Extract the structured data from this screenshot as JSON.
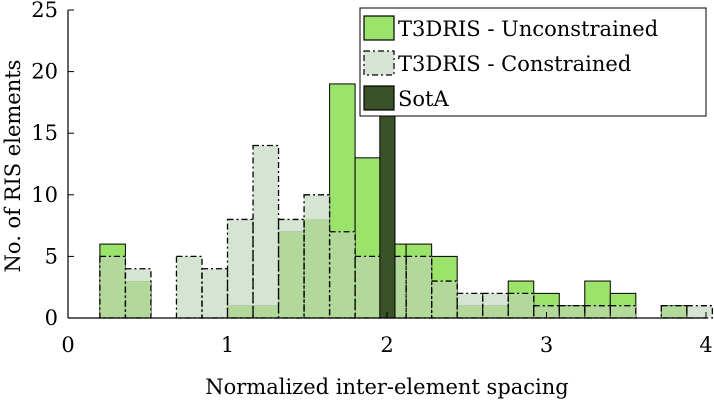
{
  "chart_data": {
    "type": "bar",
    "subtype": "histogram",
    "title": "",
    "xlabel": "Normalized inter-element spacing",
    "ylabel": "No. of RIS elements",
    "xlim": [
      0,
      4
    ],
    "ylim": [
      0,
      25
    ],
    "xticks": [
      0,
      1,
      2,
      3,
      4
    ],
    "yticks": [
      0,
      5,
      10,
      15,
      20,
      25
    ],
    "grid": false,
    "legend_position": "top-right",
    "bins": [
      [
        0.2,
        0.36
      ],
      [
        0.36,
        0.52
      ],
      [
        0.52,
        0.68
      ],
      [
        0.68,
        0.84
      ],
      [
        0.84,
        1.0
      ],
      [
        1.0,
        1.16
      ],
      [
        1.16,
        1.32
      ],
      [
        1.32,
        1.48
      ],
      [
        1.48,
        1.64
      ],
      [
        1.64,
        1.8
      ],
      [
        1.8,
        1.96
      ],
      [
        1.96,
        2.12
      ],
      [
        2.12,
        2.28
      ],
      [
        2.28,
        2.44
      ],
      [
        2.44,
        2.6
      ],
      [
        2.6,
        2.76
      ],
      [
        2.76,
        2.92
      ],
      [
        2.92,
        3.08
      ],
      [
        3.08,
        3.24
      ],
      [
        3.24,
        3.4
      ],
      [
        3.4,
        3.56
      ],
      [
        3.56,
        3.72
      ],
      [
        3.72,
        3.88
      ],
      [
        3.88,
        4.04
      ]
    ],
    "series": [
      {
        "name": "T3DRIS - Unconstrained",
        "color": "#9be36a",
        "style": "solid",
        "values": [
          6,
          3,
          0,
          0,
          0,
          1,
          1,
          7,
          8,
          19,
          13,
          6,
          6,
          5,
          1,
          1,
          3,
          2,
          1,
          3,
          2,
          0,
          1,
          0
        ]
      },
      {
        "name": "T3DRIS - Constrained",
        "color": "#d6e5d3",
        "style": "dash-dot",
        "values": [
          5,
          4,
          0,
          5,
          4,
          8,
          14,
          8,
          10,
          7,
          5,
          5,
          5,
          3,
          2,
          2,
          2,
          1,
          1,
          1,
          1,
          0,
          1,
          1
        ]
      },
      {
        "name": "SotA",
        "color": "#3a5228",
        "style": "solid",
        "bars": [
          {
            "x0": 1.955,
            "x1": 2.05,
            "value": 25
          }
        ]
      }
    ]
  }
}
